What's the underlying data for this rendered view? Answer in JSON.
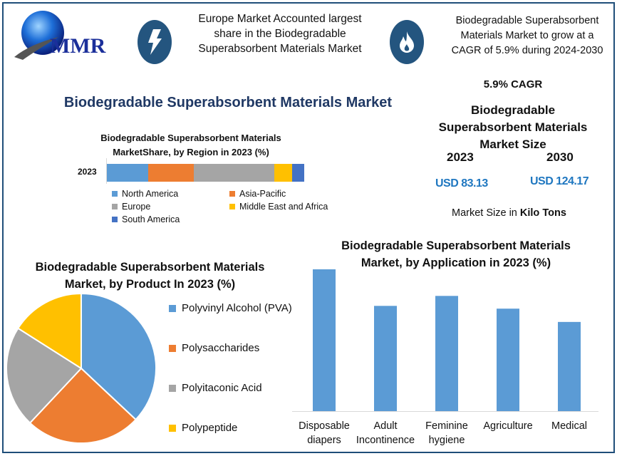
{
  "logo": {
    "text": "MMR"
  },
  "header": {
    "highlight1_icon": "lightning-bolt-icon",
    "highlight1": "Europe Market Accounted largest share in the Biodegradable Superabsorbent Materials Market",
    "highlight2_icon": "flame-icon",
    "highlight2": "Biodegradable Superabsorbent Materials Market to grow at a CAGR of 5.9% during 2024-2030"
  },
  "main_title": "Biodegradable Superabsorbent Materials Market",
  "market_size": {
    "cagr": "5.9% CAGR",
    "title": "Biodegradable Superabsorbent Materials Market Size",
    "year1": "2023",
    "year2": "2030",
    "value1": "USD 83.13",
    "value2": "USD 124.17",
    "unit_prefix": "Market Size in ",
    "unit_bold": "Kilo Tons"
  },
  "colors": {
    "frame": "#1f4e79",
    "icon_circle": "#24557f",
    "title": "#1f3864",
    "value": "#1f77c0"
  },
  "chart_data": [
    {
      "type": "bar",
      "orientation": "horizontal-stacked",
      "title": "Biodegradable Superabsorbent Materials MarketShare, by Region in 2023 (%)",
      "categories": [
        "2023"
      ],
      "series": [
        {
          "name": "North America",
          "values": [
            21
          ],
          "color": "#5b9bd5"
        },
        {
          "name": "Asia-Pacific",
          "values": [
            23
          ],
          "color": "#ed7d31"
        },
        {
          "name": "Europe",
          "values": [
            41
          ],
          "color": "#a5a5a5"
        },
        {
          "name": "Middle East and Africa",
          "values": [
            9
          ],
          "color": "#ffc000"
        },
        {
          "name": "South America",
          "values": [
            6
          ],
          "color": "#4472c4"
        }
      ],
      "legend": "bottom"
    },
    {
      "type": "pie",
      "title": "Biodegradable Superabsorbent Materials Market, by Product In 2023 (%)",
      "labels": [
        "Polyvinyl Alcohol (PVA)",
        "Polysaccharides",
        "Polyitaconic Acid",
        "Polypeptide"
      ],
      "values": [
        37,
        25,
        22,
        16
      ],
      "colors": [
        "#5b9bd5",
        "#ed7d31",
        "#a5a5a5",
        "#ffc000"
      ],
      "legend": "right"
    },
    {
      "type": "bar",
      "title": "Biodegradable Superabsorbent Materials Market, by Application in 2023 (%)",
      "categories": [
        "Disposable diapers",
        "Adult Incontinence",
        "Feminine hygiene",
        "Agriculture",
        "Medical"
      ],
      "category_lines": [
        [
          "Disposable",
          "diapers"
        ],
        [
          "Adult",
          "Incontinence"
        ],
        [
          "Feminine",
          "hygiene"
        ],
        [
          "Agriculture"
        ],
        [
          "Medical"
        ]
      ],
      "values": [
        25.6,
        19.0,
        20.8,
        18.5,
        16.1
      ],
      "color": "#5b9bd5",
      "grid": false,
      "y_axis_visible": false
    }
  ]
}
